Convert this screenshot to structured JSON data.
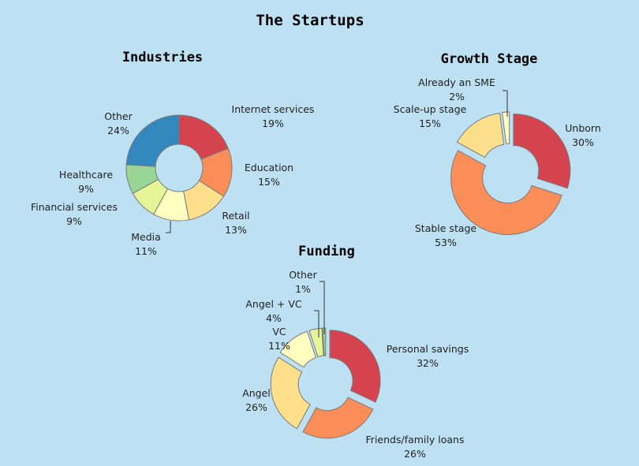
{
  "title": "The Startups",
  "palette": {
    "red": "#d5434f",
    "orange": "#fb8d59",
    "light_orange": "#fedf8b",
    "light_yellow": "#ffffbf",
    "light_green": "#e6f597",
    "green": "#99d594",
    "blue": "#3288bd"
  },
  "chart_data": [
    {
      "type": "pie",
      "title": "Industries",
      "series": [
        {
          "name": "Internet services",
          "value": 19,
          "label": "19%",
          "color": "#d5434f"
        },
        {
          "name": "Education",
          "value": 15,
          "label": "15%",
          "color": "#fb8d59"
        },
        {
          "name": "Retail",
          "value": 13,
          "label": "13%",
          "color": "#fedf8b"
        },
        {
          "name": "Media",
          "value": 11,
          "label": "11%",
          "color": "#ffffbf"
        },
        {
          "name": "Financial services",
          "value": 9,
          "label": "9%",
          "color": "#e6f597"
        },
        {
          "name": "Healthcare",
          "value": 9,
          "label": "9%",
          "color": "#99d594"
        },
        {
          "name": "Other",
          "value": 24,
          "label": "24%",
          "color": "#3288bd"
        }
      ]
    },
    {
      "type": "pie",
      "title": "Growth Stage",
      "series": [
        {
          "name": "Unborn",
          "value": 30,
          "label": "30%",
          "color": "#d5434f"
        },
        {
          "name": "Stable stage",
          "value": 53,
          "label": "53%",
          "color": "#fb8d59"
        },
        {
          "name": "Scale-up stage",
          "value": 15,
          "label": "15%",
          "color": "#fedf8b"
        },
        {
          "name": "Already an SME",
          "value": 2,
          "label": "2%",
          "color": "#ffffbf"
        }
      ]
    },
    {
      "type": "pie",
      "title": "Funding",
      "series": [
        {
          "name": "Personal savings",
          "value": 32,
          "label": "32%",
          "color": "#d5434f"
        },
        {
          "name": "Friends/family loans",
          "value": 26,
          "label": "26%",
          "color": "#fb8d59"
        },
        {
          "name": "Angel",
          "value": 26,
          "label": "26%",
          "color": "#fedf8b"
        },
        {
          "name": "VC",
          "value": 11,
          "label": "11%",
          "color": "#ffffbf"
        },
        {
          "name": "Angel + VC",
          "value": 4,
          "label": "4%",
          "color": "#e6f597"
        },
        {
          "name": "Other",
          "value": 1,
          "label": "1%",
          "color": "#99d594"
        }
      ]
    }
  ]
}
